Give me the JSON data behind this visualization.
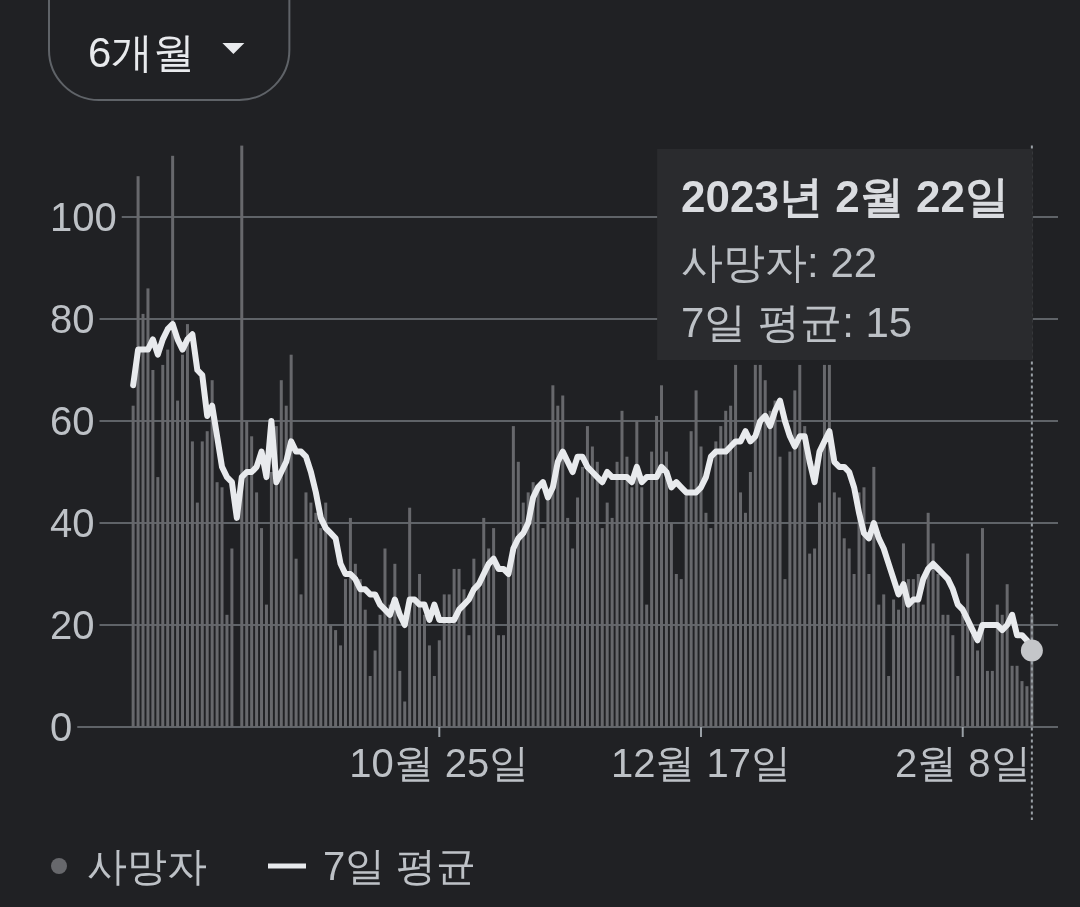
{
  "chart_data": {
    "type": "bar",
    "x": [
      "2022-08-24",
      "2022-08-25",
      "2022-08-26",
      "2022-08-27",
      "2022-08-28",
      "2022-08-29",
      "2022-08-30",
      "2022-08-31",
      "2022-09-01",
      "2022-09-02",
      "2022-09-03",
      "2022-09-04",
      "2022-09-05",
      "2022-09-06",
      "2022-09-07",
      "2022-09-08",
      "2022-09-09",
      "2022-09-10",
      "2022-09-11",
      "2022-09-12",
      "2022-09-13",
      "2022-09-14",
      "2022-09-15",
      "2022-09-16",
      "2022-09-17",
      "2022-09-18",
      "2022-09-19",
      "2022-09-20",
      "2022-09-21",
      "2022-09-22",
      "2022-09-23",
      "2022-09-24",
      "2022-09-25",
      "2022-09-26",
      "2022-09-27",
      "2022-09-28",
      "2022-09-29",
      "2022-09-30",
      "2022-10-01",
      "2022-10-02",
      "2022-10-03",
      "2022-10-04",
      "2022-10-05",
      "2022-10-06",
      "2022-10-07",
      "2022-10-08",
      "2022-10-09",
      "2022-10-10",
      "2022-10-11",
      "2022-10-12",
      "2022-10-13",
      "2022-10-14",
      "2022-10-15",
      "2022-10-16",
      "2022-10-17",
      "2022-10-18",
      "2022-10-19",
      "2022-10-20",
      "2022-10-21",
      "2022-10-22",
      "2022-10-23",
      "2022-10-24",
      "2022-10-25",
      "2022-10-26",
      "2022-10-27",
      "2022-10-28",
      "2022-10-29",
      "2022-10-30",
      "2022-10-31",
      "2022-11-01",
      "2022-11-02",
      "2022-11-03",
      "2022-11-04",
      "2022-11-05",
      "2022-11-06",
      "2022-11-07",
      "2022-11-08",
      "2022-11-09",
      "2022-11-10",
      "2022-11-11",
      "2022-11-12",
      "2022-11-13",
      "2022-11-14",
      "2022-11-15",
      "2022-11-16",
      "2022-11-17",
      "2022-11-18",
      "2022-11-19",
      "2022-11-20",
      "2022-11-21",
      "2022-11-22",
      "2022-11-23",
      "2022-11-24",
      "2022-11-25",
      "2022-11-26",
      "2022-11-27",
      "2022-11-28",
      "2022-11-29",
      "2022-11-30",
      "2022-12-01",
      "2022-12-02",
      "2022-12-03",
      "2022-12-04",
      "2022-12-05",
      "2022-12-06",
      "2022-12-07",
      "2022-12-08",
      "2022-12-09",
      "2022-12-10",
      "2022-12-11",
      "2022-12-12",
      "2022-12-13",
      "2022-12-14",
      "2022-12-15",
      "2022-12-16",
      "2022-12-17",
      "2022-12-18",
      "2022-12-19",
      "2022-12-20",
      "2022-12-21",
      "2022-12-22",
      "2022-12-23",
      "2022-12-24",
      "2022-12-25",
      "2022-12-26",
      "2022-12-27",
      "2022-12-28",
      "2022-12-29",
      "2022-12-30",
      "2022-12-31",
      "2023-01-01",
      "2023-01-02",
      "2023-01-03",
      "2023-01-04",
      "2023-01-05",
      "2023-01-06",
      "2023-01-07",
      "2023-01-08",
      "2023-01-09",
      "2023-01-10",
      "2023-01-11",
      "2023-01-12",
      "2023-01-13",
      "2023-01-14",
      "2023-01-15",
      "2023-01-16",
      "2023-01-17",
      "2023-01-18",
      "2023-01-19",
      "2023-01-20",
      "2023-01-21",
      "2023-01-22",
      "2023-01-23",
      "2023-01-24",
      "2023-01-25",
      "2023-01-26",
      "2023-01-27",
      "2023-01-28",
      "2023-01-29",
      "2023-01-30",
      "2023-01-31",
      "2023-02-01",
      "2023-02-02",
      "2023-02-03",
      "2023-02-04",
      "2023-02-05",
      "2023-02-06",
      "2023-02-07",
      "2023-02-08",
      "2023-02-09",
      "2023-02-10",
      "2023-02-11",
      "2023-02-12",
      "2023-02-13",
      "2023-02-14",
      "2023-02-15",
      "2023-02-16",
      "2023-02-17",
      "2023-02-18",
      "2023-02-19",
      "2023-02-20",
      "2023-02-21",
      "2023-02-22"
    ],
    "series": [
      {
        "name": "사망자",
        "color": "#67686c",
        "values": [
          63,
          108,
          81,
          86,
          70,
          49,
          71,
          74,
          112,
          64,
          73,
          79,
          56,
          44,
          56,
          58,
          68,
          48,
          47,
          22,
          35,
          0,
          114,
          60,
          57,
          46,
          39,
          24,
          50,
          59,
          68,
          63,
          73,
          33,
          26,
          46,
          44,
          42,
          39,
          44,
          20,
          19,
          16,
          29,
          41,
          32,
          29,
          23,
          10,
          15,
          22,
          35,
          24,
          32,
          11,
          5,
          43,
          25,
          30,
          22,
          16,
          10,
          17,
          26,
          26,
          31,
          31,
          27,
          18,
          33,
          28,
          41,
          35,
          39,
          18,
          18,
          30,
          59,
          52,
          44,
          46,
          48,
          47,
          39,
          45,
          67,
          63,
          65,
          41,
          35,
          45,
          51,
          59,
          55,
          52,
          39,
          44,
          41,
          52,
          62,
          53,
          47,
          60,
          47,
          24,
          54,
          61,
          67,
          54,
          40,
          30,
          29,
          46,
          58,
          66,
          55,
          42,
          39,
          56,
          59,
          62,
          63,
          71,
          46,
          42,
          50,
          71,
          71,
          68,
          62,
          64,
          53,
          29,
          54,
          66,
          71,
          59,
          34,
          35,
          44,
          71,
          71,
          46,
          45,
          37,
          35,
          30,
          46,
          47,
          30,
          51,
          24,
          26,
          10,
          25,
          23,
          36,
          29,
          29,
          30,
          24,
          42,
          36,
          30,
          22,
          22,
          18,
          10,
          22,
          34,
          18,
          15,
          39,
          11,
          11,
          24,
          22,
          28,
          12,
          12,
          9,
          8,
          22
        ]
      },
      {
        "name": "7일 평균",
        "type": "line",
        "color": "#e8eaed",
        "values": [
          67,
          74,
          74,
          74,
          76,
          73,
          76,
          78,
          79,
          76,
          74,
          76,
          77,
          70,
          69,
          61,
          63,
          57,
          51,
          49,
          48,
          41,
          49,
          50,
          50,
          51,
          54,
          49,
          60,
          48,
          50,
          52,
          56,
          54,
          54,
          53,
          50,
          46,
          41,
          39,
          38,
          37,
          32,
          30,
          30,
          29,
          27,
          27,
          26,
          26,
          24,
          23,
          22,
          25,
          22,
          20,
          25,
          25,
          24,
          24,
          21,
          24,
          21,
          21,
          21,
          21,
          23,
          24,
          25,
          27,
          28,
          30,
          32,
          33,
          31,
          31,
          30,
          35,
          37,
          38,
          40,
          45,
          47,
          48,
          45,
          47,
          52,
          54,
          52,
          50,
          53,
          53,
          51,
          50,
          49,
          48,
          50,
          49,
          49,
          49,
          49,
          48,
          51,
          48,
          49,
          49,
          49,
          51,
          50,
          47,
          48,
          47,
          46,
          46,
          46,
          47,
          49,
          53,
          54,
          54,
          54,
          55,
          56,
          56,
          58,
          56,
          57,
          60,
          61,
          59,
          62,
          64,
          60,
          57,
          55,
          57,
          57,
          52,
          48,
          54,
          56,
          58,
          52,
          51,
          51,
          50,
          47,
          42,
          38,
          37,
          40,
          37,
          35,
          32,
          29,
          26,
          28,
          24,
          25,
          25,
          29,
          31,
          32,
          31,
          30,
          29,
          27,
          24,
          23,
          21,
          19,
          17,
          20,
          20,
          20,
          20,
          19,
          20,
          22,
          18,
          18,
          17,
          15
        ]
      }
    ],
    "xlim": [
      "2022-08-23",
      "2023-02-23"
    ],
    "xticks": [
      {
        "value": "2022-10-25",
        "label": "10월 25일"
      },
      {
        "value": "2022-12-17",
        "label": "12월 17일"
      },
      {
        "value": "2023-02-08",
        "label": "2월 8일"
      }
    ],
    "ylim": [
      0,
      114
    ],
    "yticks": [
      0,
      20,
      40,
      60,
      80,
      100
    ],
    "grid": "y",
    "legend": "bottom",
    "ref_lines": [
      {
        "axis": "x",
        "value": "2023-02-22",
        "color": "#9aa0a6",
        "line_style": "dotted"
      }
    ],
    "annotations": [
      "6개월",
      "2023년 2월 22일",
      "사망자: 22",
      "7일 평균: 15"
    ]
  }
}
